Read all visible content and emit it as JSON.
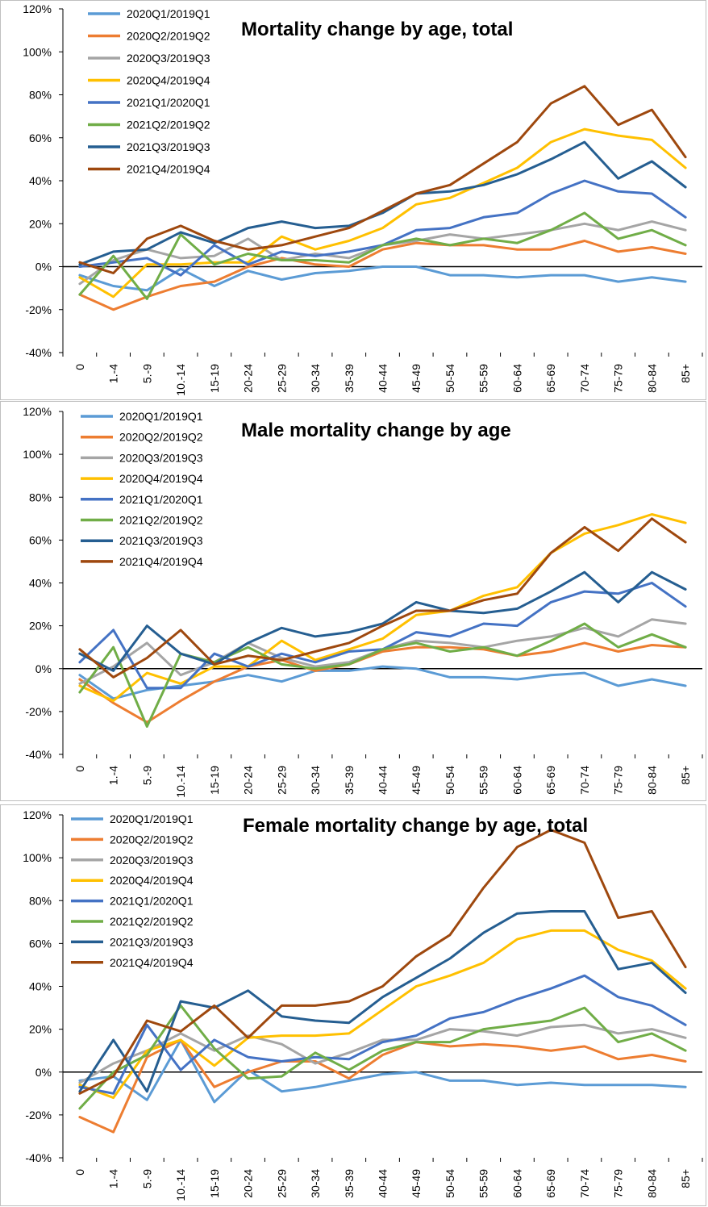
{
  "chart_data": [
    {
      "type": "line",
      "title": "Mortality change by age, total",
      "categories": [
        "0",
        "1.-4",
        "5.-9",
        "10.-14",
        "15-19",
        "20-24",
        "25-29",
        "30-34",
        "35-39",
        "40-44",
        "45-49",
        "50-54",
        "55-59",
        "60-64",
        "65-69",
        "70-74",
        "75-79",
        "80-84",
        "85+"
      ],
      "y_ticks": [
        "-40%",
        "-20%",
        "0%",
        "20%",
        "40%",
        "60%",
        "80%",
        "100%",
        "120%"
      ],
      "ylim": [
        -40,
        120
      ],
      "series": [
        {
          "name": "2020Q1/2019Q1",
          "color": "#5b9bd5",
          "values": [
            -4,
            -9,
            -11,
            -1,
            -9,
            -2,
            -6,
            -3,
            -2,
            0,
            0,
            -4,
            -4,
            -5,
            -4,
            -4,
            -7,
            -5,
            -7
          ]
        },
        {
          "name": "2020Q2/2019Q2",
          "color": "#ed7d31",
          "values": [
            -13,
            -20,
            -14,
            -9,
            -7,
            0,
            4,
            1,
            0,
            8,
            11,
            10,
            10,
            8,
            8,
            12,
            7,
            9,
            6
          ]
        },
        {
          "name": "2020Q3/2019Q3",
          "color": "#a5a5a5",
          "values": [
            -8,
            3,
            8,
            4,
            5,
            13,
            3,
            6,
            4,
            10,
            12,
            15,
            13,
            15,
            17,
            20,
            17,
            21,
            17
          ]
        },
        {
          "name": "2020Q4/2019Q4",
          "color": "#ffc000",
          "values": [
            -5,
            -14,
            1,
            1,
            2,
            2,
            14,
            8,
            12,
            18,
            29,
            32,
            39,
            46,
            58,
            64,
            61,
            59,
            46
          ]
        },
        {
          "name": "2021Q1/2020Q1",
          "color": "#4472c4",
          "values": [
            0,
            2,
            4,
            -4,
            10,
            1,
            7,
            5,
            7,
            10,
            17,
            18,
            23,
            25,
            34,
            40,
            35,
            34,
            23
          ]
        },
        {
          "name": "2021Q2/2019Q2",
          "color": "#70ad47",
          "values": [
            -13,
            5,
            -15,
            15,
            1,
            6,
            3,
            3,
            2,
            10,
            13,
            10,
            13,
            11,
            17,
            25,
            13,
            17,
            10
          ]
        },
        {
          "name": "2021Q3/2019Q3",
          "color": "#255e91",
          "values": [
            1,
            7,
            8,
            16,
            11,
            18,
            21,
            18,
            19,
            25,
            34,
            35,
            38,
            43,
            50,
            58,
            41,
            49,
            37
          ]
        },
        {
          "name": "2021Q4/2019Q4",
          "color": "#9e480e",
          "values": [
            2,
            -3,
            13,
            19,
            12,
            8,
            10,
            14,
            18,
            26,
            34,
            38,
            48,
            58,
            76,
            84,
            66,
            73,
            51
          ]
        }
      ]
    },
    {
      "type": "line",
      "title": "Male mortality change by age",
      "categories": [
        "0",
        "1.-4",
        "5.-9",
        "10.-14",
        "15-19",
        "20-24",
        "25-29",
        "30-34",
        "35-39",
        "40-44",
        "45-49",
        "50-54",
        "55-59",
        "60-64",
        "65-69",
        "70-74",
        "75-79",
        "80-84",
        "85+"
      ],
      "y_ticks": [
        "-40%",
        "-20%",
        "0%",
        "20%",
        "40%",
        "60%",
        "80%",
        "100%",
        "120%"
      ],
      "ylim": [
        -40,
        120
      ],
      "series": [
        {
          "name": "2020Q1/2019Q1",
          "color": "#5b9bd5",
          "values": [
            -3,
            -14,
            -10,
            -8,
            -6,
            -3,
            -6,
            -1,
            -1,
            1,
            0,
            -4,
            -4,
            -5,
            -3,
            -2,
            -8,
            -5,
            -8
          ]
        },
        {
          "name": "2020Q2/2019Q2",
          "color": "#ed7d31",
          "values": [
            -5,
            -16,
            -25,
            -15,
            -6,
            1,
            4,
            -1,
            2,
            8,
            10,
            10,
            9,
            6,
            8,
            12,
            8,
            11,
            10
          ]
        },
        {
          "name": "2020Q3/2019Q3",
          "color": "#a5a5a5",
          "values": [
            -7,
            1,
            12,
            -3,
            3,
            12,
            5,
            1,
            3,
            9,
            13,
            12,
            10,
            13,
            15,
            19,
            15,
            23,
            21
          ]
        },
        {
          "name": "2020Q4/2019Q4",
          "color": "#ffc000",
          "values": [
            -8,
            -15,
            -2,
            -7,
            1,
            1,
            13,
            4,
            9,
            14,
            25,
            27,
            34,
            38,
            54,
            63,
            67,
            72,
            68
          ]
        },
        {
          "name": "2021Q1/2020Q1",
          "color": "#4472c4",
          "values": [
            3,
            18,
            -9,
            -9,
            7,
            1,
            7,
            3,
            8,
            9,
            17,
            15,
            21,
            20,
            31,
            36,
            35,
            40,
            29
          ]
        },
        {
          "name": "2021Q2/2019Q2",
          "color": "#70ad47",
          "values": [
            -11,
            10,
            -27,
            7,
            3,
            10,
            2,
            0,
            2,
            9,
            12,
            8,
            10,
            6,
            13,
            21,
            10,
            16,
            10
          ]
        },
        {
          "name": "2021Q3/2019Q3",
          "color": "#255e91",
          "values": [
            7,
            -1,
            20,
            7,
            2,
            12,
            19,
            15,
            17,
            21,
            31,
            27,
            26,
            28,
            36,
            45,
            31,
            45,
            37
          ]
        },
        {
          "name": "2021Q4/2019Q4",
          "color": "#9e480e",
          "values": [
            9,
            -4,
            5,
            18,
            2,
            6,
            4,
            8,
            12,
            20,
            27,
            27,
            32,
            35,
            54,
            66,
            55,
            70,
            59
          ]
        }
      ]
    },
    {
      "type": "line",
      "title": "Female mortality change by age, total",
      "categories": [
        "0",
        "1.-4",
        "5.-9",
        "10.-14",
        "15-19",
        "20-24",
        "25-29",
        "30-34",
        "35-39",
        "40-44",
        "45-49",
        "50-54",
        "55-59",
        "60-64",
        "65-69",
        "70-74",
        "75-79",
        "80-84",
        "85+"
      ],
      "y_ticks": [
        "-40%",
        "-20%",
        "0%",
        "20%",
        "40%",
        "60%",
        "80%",
        "100%",
        "120%"
      ],
      "ylim": [
        -40,
        120
      ],
      "series": [
        {
          "name": "2020Q1/2019Q1",
          "color": "#5b9bd5",
          "values": [
            -4,
            -2,
            -13,
            15,
            -14,
            1,
            -9,
            -7,
            -4,
            -1,
            0,
            -4,
            -4,
            -6,
            -5,
            -6,
            -6,
            -6,
            -7
          ]
        },
        {
          "name": "2020Q2/2019Q2",
          "color": "#ed7d31",
          "values": [
            -21,
            -28,
            7,
            15,
            -7,
            0,
            5,
            5,
            -3,
            8,
            14,
            12,
            13,
            12,
            10,
            12,
            6,
            8,
            5
          ]
        },
        {
          "name": "2020Q3/2019Q3",
          "color": "#a5a5a5",
          "values": [
            -5,
            4,
            10,
            18,
            10,
            17,
            13,
            4,
            9,
            15,
            15,
            20,
            19,
            17,
            21,
            22,
            18,
            20,
            16
          ]
        },
        {
          "name": "2020Q4/2019Q4",
          "color": "#ffc000",
          "values": [
            -6,
            -12,
            10,
            15,
            3,
            16,
            17,
            17,
            18,
            29,
            40,
            45,
            51,
            62,
            66,
            66,
            57,
            52,
            39
          ]
        },
        {
          "name": "2021Q1/2020Q1",
          "color": "#4472c4",
          "values": [
            -7,
            -10,
            22,
            1,
            15,
            7,
            5,
            7,
            6,
            14,
            17,
            25,
            28,
            34,
            39,
            45,
            35,
            31,
            22
          ]
        },
        {
          "name": "2021Q2/2019Q2",
          "color": "#70ad47",
          "values": [
            -17,
            0,
            8,
            31,
            11,
            -3,
            -2,
            9,
            1,
            10,
            14,
            14,
            20,
            22,
            24,
            30,
            14,
            18,
            10
          ]
        },
        {
          "name": "2021Q3/2019Q3",
          "color": "#255e91",
          "values": [
            -9,
            15,
            -9,
            33,
            30,
            38,
            26,
            24,
            23,
            35,
            44,
            53,
            65,
            74,
            75,
            75,
            48,
            51,
            37
          ]
        },
        {
          "name": "2021Q4/2019Q4",
          "color": "#9e480e",
          "values": [
            -10,
            -2,
            24,
            19,
            31,
            16,
            31,
            31,
            33,
            40,
            54,
            64,
            86,
            105,
            113,
            107,
            72,
            75,
            49
          ]
        }
      ]
    }
  ]
}
